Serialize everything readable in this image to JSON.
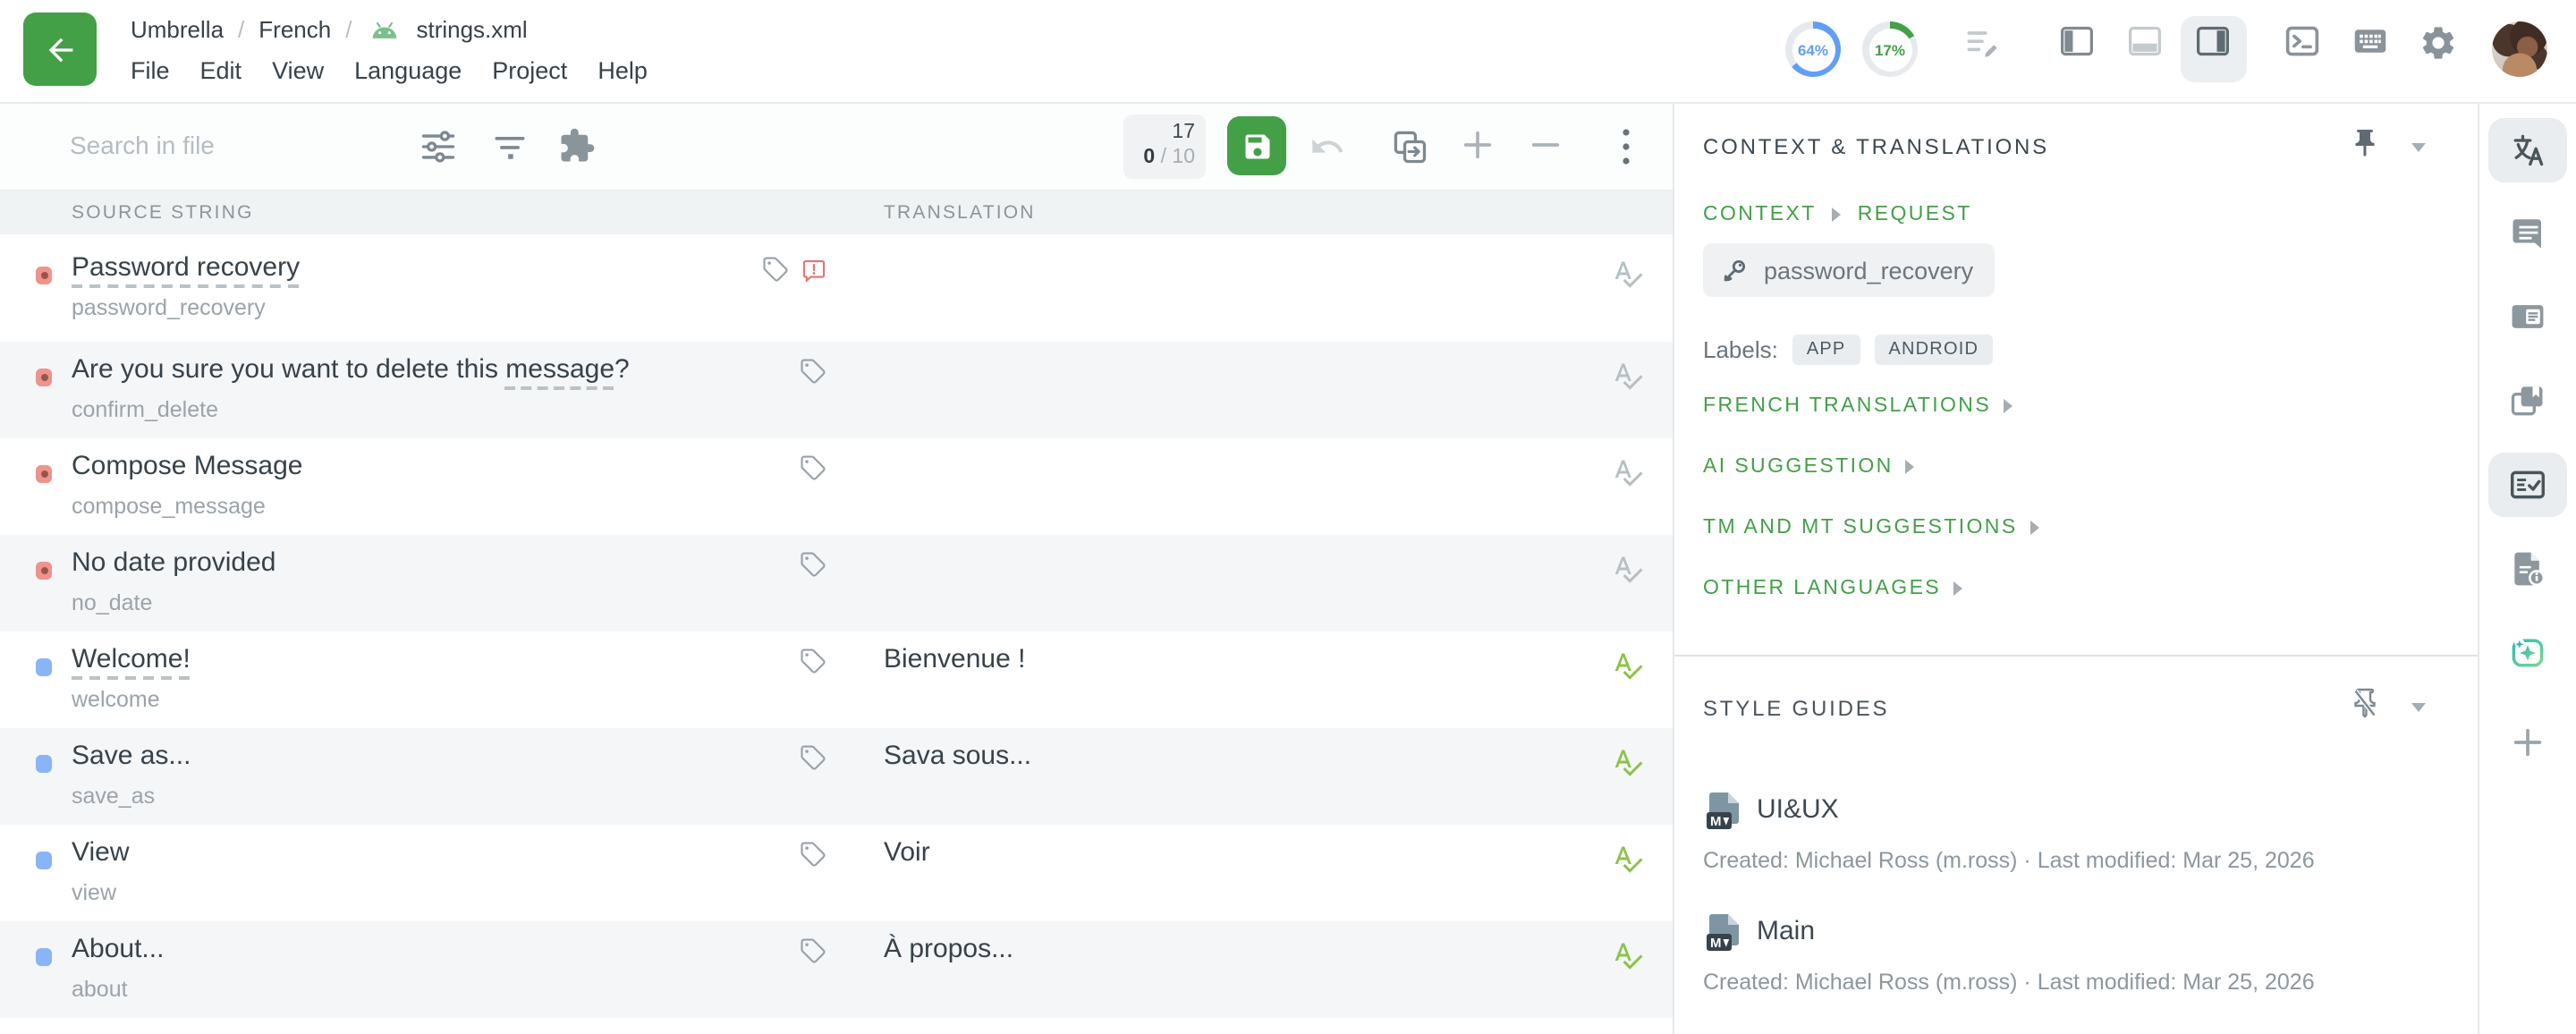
{
  "colors": {
    "accent_green": "#43a047",
    "spellcheck_ok": "#8bc34a",
    "bullet_untranslated": "#ef938c",
    "bullet_translated": "#8ab4f8",
    "progress_blue": "#619ff7",
    "comment_alert": "#e57373"
  },
  "header": {
    "breadcrumb": {
      "project": "Umbrella",
      "separator": "/",
      "language": "French",
      "file": "strings.xml"
    },
    "menu": [
      "File",
      "Edit",
      "View",
      "Language",
      "Project",
      "Help"
    ],
    "progress_translated": "64%",
    "progress_reviewed": "17%"
  },
  "toolbar": {
    "search_placeholder": "Search in file",
    "counter_total_keys": "17",
    "counter_done": "0",
    "counter_of": "/ 10"
  },
  "table": {
    "source_header": "SOURCE STRING",
    "translation_header": "TRANSLATION",
    "rows": [
      {
        "status": "untranslated",
        "parts": [
          {
            "text": "Password recovery",
            "underline": true
          }
        ],
        "key": "password_recovery",
        "translation": "",
        "has_comment": true
      },
      {
        "status": "untranslated",
        "parts": [
          {
            "text": "Are you sure you want to delete this "
          },
          {
            "text": "message",
            "underline": true
          },
          {
            "text": "?"
          }
        ],
        "key": "confirm_delete",
        "translation": ""
      },
      {
        "status": "untranslated",
        "parts": [
          {
            "text": "Compose Message"
          }
        ],
        "key": "compose_message",
        "translation": ""
      },
      {
        "status": "untranslated",
        "parts": [
          {
            "text": "No date provided"
          }
        ],
        "key": "no_date",
        "translation": ""
      },
      {
        "status": "translated",
        "parts": [
          {
            "text": "Welcome!",
            "underline": true
          }
        ],
        "key": "welcome",
        "translation": "Bienvenue !"
      },
      {
        "status": "translated",
        "parts": [
          {
            "text": "Save as..."
          }
        ],
        "key": "save_as",
        "translation": "Sava sous..."
      },
      {
        "status": "translated",
        "parts": [
          {
            "text": "View"
          }
        ],
        "key": "view",
        "translation": "Voir"
      },
      {
        "status": "translated",
        "parts": [
          {
            "text": "About..."
          }
        ],
        "key": "about",
        "translation": "À propos..."
      }
    ]
  },
  "panel": {
    "title": "CONTEXT & TRANSLATIONS",
    "tabs": [
      "CONTEXT",
      "REQUEST"
    ],
    "key_chip": "password_recovery",
    "labels_caption": "Labels:",
    "labels": [
      "APP",
      "ANDROID"
    ],
    "sections": [
      "FRENCH TRANSLATIONS",
      "AI SUGGESTION",
      "TM AND MT SUGGESTIONS",
      "OTHER LANGUAGES"
    ],
    "styleguides": {
      "title": "STYLE GUIDES",
      "entries": [
        {
          "title": "UI&UX",
          "meta": "Created: Michael Ross (m.ross) · Last modified: Mar 25, 2026"
        },
        {
          "title": "Main",
          "meta": "Created: Michael Ross (m.ross) · Last modified: Mar 25, 2026"
        }
      ]
    }
  }
}
